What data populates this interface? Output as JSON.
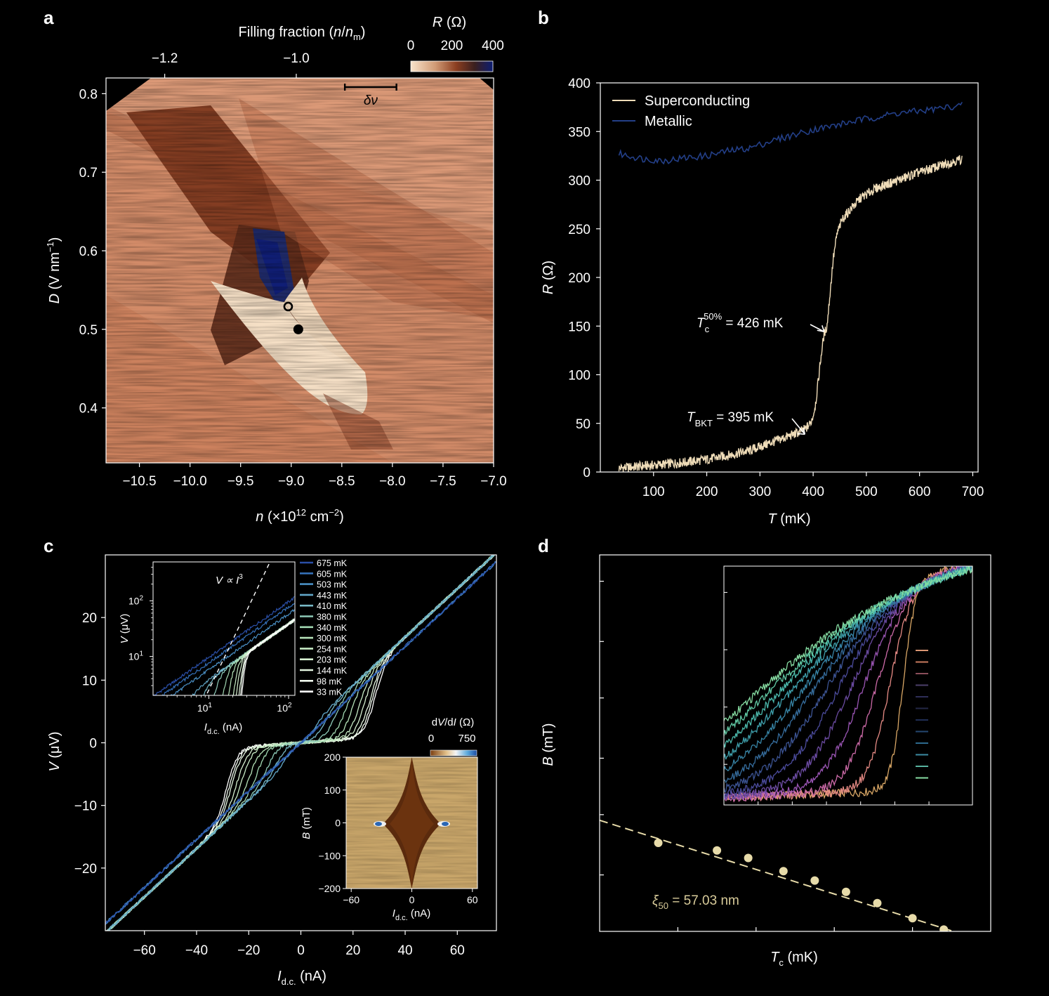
{
  "panels": [
    {
      "id": "a",
      "label": "a",
      "type": "heatmap",
      "xlabel": "n (×10^12 cm^−2)",
      "xlabel_parts": {
        "base": "n",
        "pre": "(×10",
        "sup": "12",
        "mid": " cm",
        "sup2": "−2",
        "post": ")"
      },
      "ylabel": "D (V nm^−1)",
      "xlim": [
        -10.83,
        -7.0
      ],
      "ylim": [
        0.33,
        0.82
      ],
      "xticks": [
        -10.5,
        -10.0,
        -9.5,
        -9.0,
        -8.5,
        -8.0,
        -7.5,
        -7.0
      ],
      "xtick_labels": [
        "−10.5",
        "−10.0",
        "−9.5",
        "−9.0",
        "−8.5",
        "−8.0",
        "−7.5",
        "−7.0"
      ],
      "yticks": [
        0.4,
        0.5,
        0.6,
        0.7,
        0.8
      ],
      "ytick_labels": [
        "0.4",
        "0.5",
        "0.6",
        "0.7",
        "0.8"
      ],
      "top_axis": {
        "label": "Filling fraction (n/n_m)",
        "label_parts": {
          "pre": "Filling fraction (",
          "n": "n",
          "slash": "/",
          "n2": "n",
          "sub": "m",
          "post": ")"
        },
        "ticks_n": [
          -10.25,
          -8.95
        ],
        "tick_labels": [
          "−1.2",
          "−1.0"
        ]
      },
      "colorbar": {
        "label": "R (Ω)",
        "label_parts": {
          "sym": "R",
          "unit": " (Ω)"
        },
        "ticks": [
          0,
          200,
          400
        ],
        "tick_labels": [
          "0",
          "200",
          "400"
        ],
        "colors": [
          "#f8e3cb",
          "#d09a75",
          "#8c3f21",
          "#3a1f1f",
          "#0c1d72"
        ]
      },
      "scale_bar": {
        "label": "δν",
        "n_from": -8.47,
        "n_to": -7.96
      },
      "markers": [
        {
          "n": -9.03,
          "D": 0.529,
          "style": "open"
        },
        {
          "n": -8.93,
          "D": 0.5,
          "style": "filled"
        }
      ]
    },
    {
      "id": "b",
      "label": "b",
      "type": "line",
      "xlabel": "T (mK)",
      "ylabel": "R (Ω)",
      "xlim": [
        0,
        710
      ],
      "ylim": [
        0,
        400
      ],
      "xticks": [
        100,
        200,
        300,
        400,
        500,
        600,
        700
      ],
      "yticks": [
        0,
        50,
        100,
        150,
        200,
        250,
        300,
        350,
        400
      ],
      "series": [
        {
          "name": "Superconducting",
          "color": "#efdcb8",
          "x": [
            35,
            80,
            120,
            160,
            200,
            240,
            280,
            320,
            350,
            370,
            385,
            395,
            400,
            405,
            410,
            415,
            420,
            426,
            432,
            438,
            445,
            455,
            470,
            490,
            520,
            560,
            600,
            640,
            680
          ],
          "y": [
            4,
            6,
            8,
            10,
            13,
            17,
            22,
            30,
            36,
            40,
            44,
            50,
            58,
            72,
            95,
            120,
            140,
            150,
            185,
            220,
            245,
            260,
            270,
            282,
            292,
            300,
            308,
            315,
            322
          ]
        },
        {
          "name": "Metallic",
          "color": "#233f88",
          "x": [
            35,
            80,
            120,
            160,
            200,
            240,
            280,
            320,
            360,
            400,
            440,
            480,
            520,
            560,
            600,
            640,
            680
          ],
          "y": [
            327,
            322,
            320,
            323,
            325,
            330,
            333,
            340,
            346,
            352,
            356,
            361,
            365,
            369,
            371,
            374,
            377
          ]
        }
      ],
      "annotations": {
        "tc_sym": "T",
        "tc_sub": "c",
        "tc_sup": "50%",
        "tc_text": " = 426 mK",
        "tc_T": 426,
        "tbkt_sym": "T",
        "tbkt_sub": "BKT",
        "tbkt_text": " = 395 mK",
        "tbkt_T": 395
      }
    },
    {
      "id": "c",
      "label": "c",
      "type": "line",
      "xlabel": "I_d.c. (nA)",
      "xlabel_parts": {
        "sym": "I",
        "sub": "d.c.",
        "unit": " (nA)"
      },
      "ylabel": "V (μV)",
      "xlim": [
        -75,
        75
      ],
      "ylim": [
        -30,
        30
      ],
      "xticks": [
        -60,
        -40,
        -20,
        0,
        20,
        40,
        60
      ],
      "xtick_labels": [
        "−60",
        "−40",
        "−20",
        "0",
        "20",
        "40",
        "60"
      ],
      "yticks": [
        -20,
        -10,
        0,
        10,
        20
      ],
      "ytick_labels": [
        "−20",
        "−10",
        "0",
        "10",
        "20"
      ],
      "legend": [
        {
          "label": "675 mK",
          "color": "#2a4fa8",
          "Ic": 0
        },
        {
          "label": "605 mK",
          "color": "#3570b8",
          "Ic": 0
        },
        {
          "label": "503 mK",
          "color": "#4a8fc4",
          "Ic": 0
        },
        {
          "label": "443 mK",
          "color": "#62a7c8",
          "Ic": 4
        },
        {
          "label": "410 mK",
          "color": "#78b9c6",
          "Ic": 8
        },
        {
          "label": "380 mK",
          "color": "#8ecab8",
          "Ic": 12
        },
        {
          "label": "340 mK",
          "color": "#a2d8b2",
          "Ic": 16
        },
        {
          "label": "300 mK",
          "color": "#b5e2b8",
          "Ic": 19
        },
        {
          "label": "254 mK",
          "color": "#c6eac4",
          "Ic": 22
        },
        {
          "label": "203 mK",
          "color": "#d6f0d0",
          "Ic": 24
        },
        {
          "label": "144 mK",
          "color": "#e4f5e0",
          "Ic": 26
        },
        {
          "label": "98 mK",
          "color": "#f0f9ee",
          "Ic": 27
        },
        {
          "label": "33 mK",
          "color": "#ffffff",
          "Ic": 28
        }
      ],
      "inset_loglog": {
        "xlabel_parts": {
          "sym": "I",
          "sub": "d.c.",
          "unit": " (nA)"
        },
        "ylabel": "V (μV)",
        "xlim": [
          2,
          120
        ],
        "ylim": [
          2,
          500
        ],
        "xticks": [
          10,
          100
        ],
        "xtick_labels": [
          {
            "base": "10",
            "sup": "1"
          },
          {
            "base": "10",
            "sup": "2"
          }
        ],
        "yticks": [
          10,
          100
        ],
        "ytick_labels": [
          {
            "base": "10",
            "sup": "1"
          },
          {
            "base": "10",
            "sup": "2"
          }
        ],
        "annotation_parts": {
          "lhs": "V ∝ ",
          "sym": "I",
          "sup": "3"
        }
      },
      "inset_map": {
        "xlabel_parts": {
          "sym": "I",
          "sub": "d.c.",
          "unit": " (nA)"
        },
        "ylabel": "B (mT)",
        "xlim": [
          -65,
          65
        ],
        "ylim": [
          -200,
          200
        ],
        "xticks": [
          -60,
          0,
          60
        ],
        "xtick_labels": [
          "−60",
          "0",
          "60"
        ],
        "yticks": [
          -200,
          -100,
          0,
          100,
          200
        ],
        "ytick_labels": [
          "−200",
          "−100",
          "0",
          "100",
          "200"
        ],
        "colorbar": {
          "label": "dV/dI (Ω)",
          "label_parts": {
            "a": "d",
            "V": "V",
            "slash": "/d",
            "I": "I",
            "unit": " (Ω)"
          },
          "tick_labels": [
            "0",
            "750"
          ]
        }
      }
    },
    {
      "id": "d",
      "label": "d",
      "type": "scatter",
      "xlabel": "T_c (mK)",
      "xlabel_parts": {
        "sym": "T",
        "sub": "c",
        "unit": " (mK)"
      },
      "ylabel": "B (mT)",
      "xlim": [
        0,
        10
      ],
      "ylim": [
        0,
        10
      ],
      "points": {
        "x": [
          1.5,
          3.0,
          3.8,
          4.7,
          5.5,
          6.3,
          7.1,
          8.0,
          8.8
        ],
        "y": [
          2.35,
          2.15,
          1.95,
          1.6,
          1.35,
          1.05,
          0.75,
          0.35,
          0.05
        ]
      },
      "fit": {
        "x": [
          0.0,
          9.2
        ],
        "y": [
          2.95,
          -0.05
        ]
      },
      "annotation_parts": {
        "sym": "ξ",
        "sub": "50",
        "text": " = 57.03 nm"
      },
      "inset": {
        "curve_colors": [
          "#d9a766",
          "#e58a84",
          "#cc6aa8",
          "#9a55b4",
          "#6a4aa0",
          "#4a4a9a",
          "#3c5494",
          "#356c9c",
          "#3886a8",
          "#3fa0ac",
          "#4bb8ab",
          "#62cba6",
          "#86dca2"
        ],
        "legend_colors": [
          "#d99572",
          "#c77a5e",
          "#8a4e5a",
          "#4b3f6a",
          "#2e2e58",
          "#232746",
          "#1f2e55",
          "#254770",
          "#2d6a8e",
          "#3c8ca3",
          "#57b39f",
          "#86dca2"
        ]
      }
    }
  ]
}
